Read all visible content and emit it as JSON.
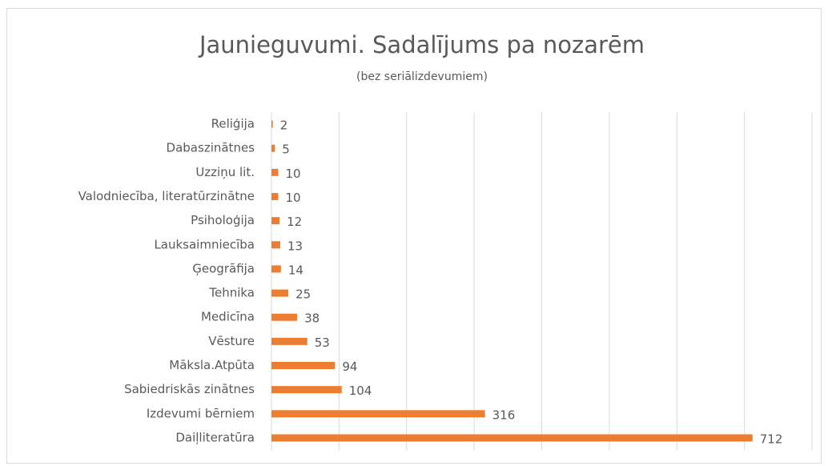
{
  "chart_data": {
    "type": "barh",
    "title": "Jaunieguvumi. Sadalījums pa nozarēm",
    "subtitle": "(bez seriālizdevumiem)",
    "categories": [
      "Reliģija",
      "Dabaszinātnes",
      "Uzziņu lit.",
      "Valodniecība, literatūrzinātne",
      "Psiholoģija",
      "Lauksaimniecība",
      "Ģeogrāfija",
      "Tehnika",
      "Medicīna",
      "Vēsture",
      "Māksla.Atpūta",
      "Sabiedriskās zinātnes",
      "Izdevumi bērniem",
      "Daiļliteratūra"
    ],
    "values": [
      2,
      5,
      10,
      10,
      12,
      13,
      14,
      25,
      38,
      53,
      94,
      104,
      316,
      712
    ],
    "color": "#ed7d31",
    "xlim": [
      0,
      800
    ],
    "xticks": [
      0,
      100,
      200,
      300,
      400,
      500,
      600,
      700,
      800
    ],
    "grid": true
  }
}
